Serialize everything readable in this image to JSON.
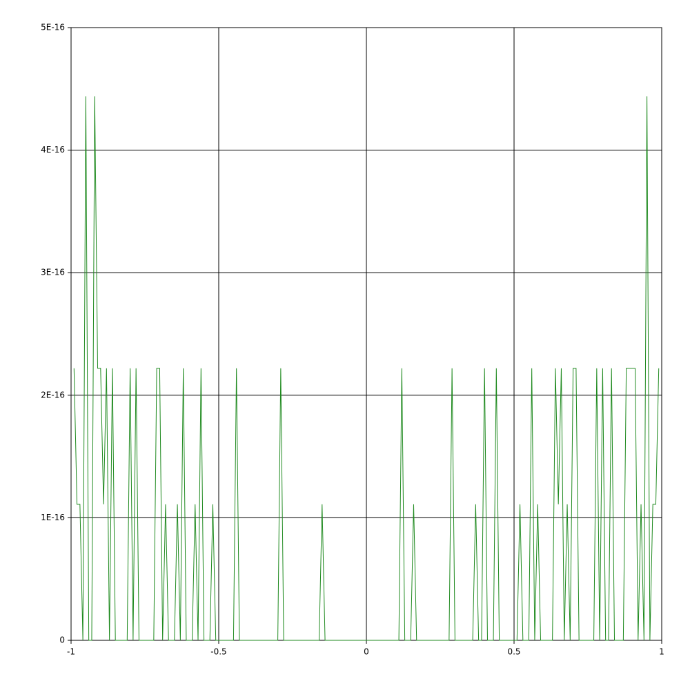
{
  "chart_data": {
    "type": "line",
    "x": [
      -0.99,
      -0.98,
      -0.97,
      -0.96,
      -0.95,
      -0.94,
      -0.93,
      -0.92,
      -0.91,
      -0.9,
      -0.89,
      -0.88,
      -0.87,
      -0.86,
      -0.85,
      -0.81,
      -0.8,
      -0.79,
      -0.78,
      -0.77,
      -0.72,
      -0.71,
      -0.7,
      -0.69,
      -0.68,
      -0.67,
      -0.65,
      -0.64,
      -0.63,
      -0.62,
      -0.61,
      -0.59,
      -0.58,
      -0.57,
      -0.56,
      -0.55,
      -0.53,
      -0.52,
      -0.51,
      -0.45,
      -0.44,
      -0.43,
      -0.3,
      -0.29,
      -0.28,
      -0.16,
      -0.15,
      -0.14,
      0.11,
      0.12,
      0.13,
      0.15,
      0.16,
      0.17,
      0.28,
      0.29,
      0.3,
      0.36,
      0.37,
      0.38,
      0.39,
      0.4,
      0.41,
      0.43,
      0.44,
      0.45,
      0.51,
      0.52,
      0.53,
      0.55,
      0.56,
      0.57,
      0.58,
      0.59,
      0.63,
      0.64,
      0.65,
      0.66,
      0.67,
      0.68,
      0.69,
      0.7,
      0.71,
      0.72,
      0.77,
      0.78,
      0.79,
      0.8,
      0.81,
      0.82,
      0.83,
      0.84,
      0.87,
      0.88,
      0.91,
      0.92,
      0.93,
      0.94,
      0.95,
      0.96,
      0.97,
      0.98,
      0.99
    ],
    "series": [
      {
        "color": "#1f8a1f",
        "values": [
          2.22e-16,
          1.11e-16,
          1.11e-16,
          0,
          4.44e-16,
          0,
          0,
          4.44e-16,
          2.22e-16,
          2.22e-16,
          1.11e-16,
          2.22e-16,
          0,
          2.22e-16,
          0,
          0,
          2.22e-16,
          0,
          2.22e-16,
          0,
          0,
          2.22e-16,
          2.22e-16,
          0,
          1.11e-16,
          0,
          0,
          1.11e-16,
          0,
          2.22e-16,
          0,
          0,
          1.11e-16,
          0,
          2.22e-16,
          0,
          0,
          1.11e-16,
          0,
          0,
          2.22e-16,
          0,
          0,
          2.22e-16,
          0,
          0,
          1.11e-16,
          0,
          0,
          2.22e-16,
          0,
          0,
          1.11e-16,
          0,
          0,
          2.22e-16,
          0,
          0,
          1.11e-16,
          0,
          0,
          2.22e-16,
          0,
          0,
          2.22e-16,
          0,
          0,
          1.11e-16,
          0,
          0,
          2.22e-16,
          0,
          1.11e-16,
          0,
          0,
          2.22e-16,
          1.11e-16,
          2.22e-16,
          0,
          1.11e-16,
          0,
          2.22e-16,
          2.22e-16,
          0,
          0,
          2.22e-16,
          0,
          2.22e-16,
          0,
          0,
          2.22e-16,
          0,
          0,
          2.22e-16,
          2.22e-16,
          0,
          1.11e-16,
          0,
          4.44e-16,
          0,
          1.11e-16,
          1.11e-16,
          2.22e-16
        ]
      }
    ],
    "xlim": [
      -1,
      1
    ],
    "xticks": [
      -1,
      -0.5,
      0,
      0.5,
      1
    ],
    "ylim": [
      0,
      5e-16
    ],
    "yticks": [
      0,
      {
        "value": 1e-16,
        "label": "1E-16"
      },
      {
        "value": 2e-16,
        "label": "2E-16"
      },
      {
        "value": 3e-16,
        "label": "3E-16"
      },
      {
        "value": 4e-16,
        "label": "4E-16"
      },
      {
        "value": 5e-16,
        "label": "5E-16"
      }
    ],
    "grid": true
  }
}
